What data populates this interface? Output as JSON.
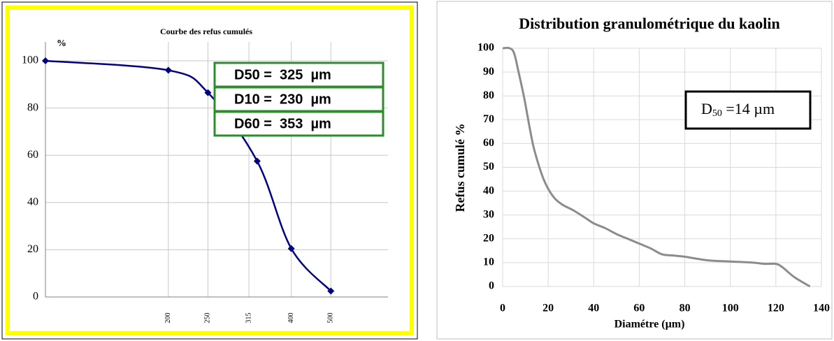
{
  "chart_data": [
    {
      "type": "line",
      "title": "Courbe des refus cumulés",
      "ylabel": "%",
      "x": [
        100,
        200,
        250,
        330,
        400,
        500
      ],
      "values": [
        100,
        96,
        86.5,
        57.5,
        20.5,
        2.5
      ],
      "color": "#000080",
      "marker": "diamond",
      "xscale": "log",
      "xlim": [
        100,
        690
      ],
      "xticks": [
        200,
        250,
        315,
        400,
        500
      ],
      "ylim": [
        0,
        108
      ],
      "yticks": [
        0,
        20,
        40,
        60,
        80,
        100
      ],
      "grid": true,
      "annotations": [
        "D50 =  325  µm",
        "D10 =  230  µm",
        "D60 =  353  µm"
      ]
    },
    {
      "type": "line",
      "title": "Distribution granulométrique du kaolin",
      "xlabel": "Diamétre (µm)",
      "ylabel": "Refus cumulé %",
      "x": [
        0,
        3,
        5,
        7,
        9.5,
        12,
        14,
        18,
        22,
        26,
        31,
        36,
        40,
        45,
        50,
        55,
        60,
        65,
        70,
        75,
        80,
        90,
        100,
        110,
        115,
        120,
        123,
        128,
        135
      ],
      "values": [
        100,
        100,
        98,
        90,
        79,
        66,
        57,
        45,
        38,
        34.5,
        32,
        29,
        26.5,
        24.5,
        22,
        20,
        18,
        16,
        13.5,
        13,
        12.5,
        11,
        10.5,
        10,
        9.5,
        9.5,
        8,
        4,
        0
      ],
      "color": "#8c8c8c",
      "xlim": [
        0,
        140
      ],
      "xticks": [
        0,
        20,
        40,
        60,
        80,
        100,
        120,
        140
      ],
      "ylim": [
        0,
        100
      ],
      "yticks": [
        0,
        10,
        20,
        30,
        40,
        50,
        60,
        70,
        80,
        90,
        100
      ],
      "grid": true,
      "annotations": [
        {
          "text": "D",
          "sub": "50",
          "rest": " =14 µm"
        }
      ]
    }
  ]
}
